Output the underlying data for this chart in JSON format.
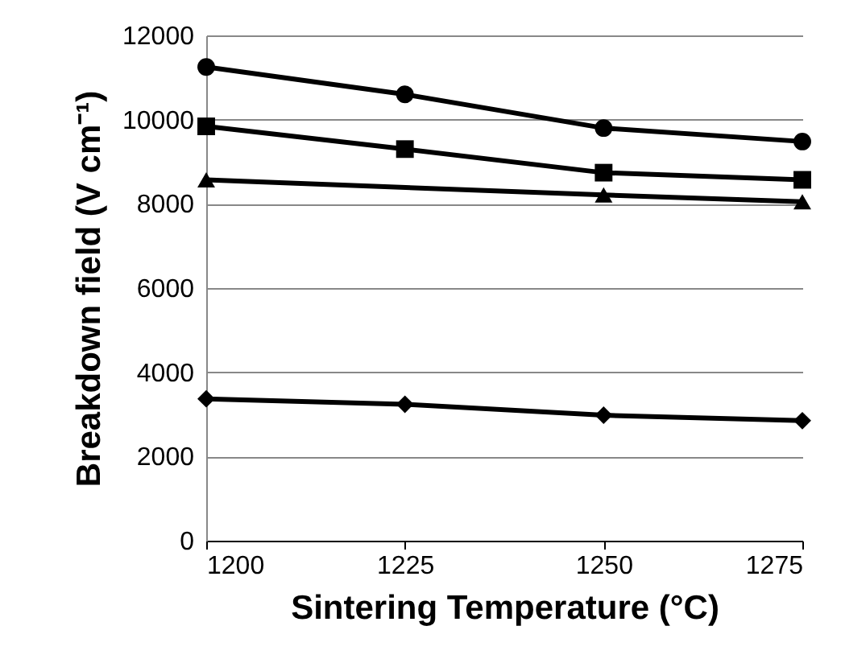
{
  "chart_data": {
    "type": "line",
    "xlabel": "Sintering Temperature (°C)",
    "ylabel": "Breakdown field (V cm⁻¹)",
    "x": [
      1200,
      1225,
      1250,
      1275
    ],
    "series": [
      {
        "color": "#000000",
        "marker": "circle",
        "values": [
          11250,
          10600,
          9800,
          9480
        ]
      },
      {
        "color": "#000000",
        "marker": "square",
        "values": [
          9840,
          9300,
          8740,
          8570
        ]
      },
      {
        "color": "#000000",
        "marker": "triangle",
        "values": [
          8570,
          null,
          8210,
          8050
        ]
      },
      {
        "color": "#000000",
        "marker": "diamond",
        "values": [
          3370,
          3240,
          2980,
          2850
        ]
      }
    ],
    "xlim": [
      1200,
      1275
    ],
    "xticks": [
      1200,
      1225,
      1250,
      1275
    ],
    "ylim": [
      0,
      12000
    ],
    "yticks": [
      0,
      2000,
      4000,
      6000,
      8000,
      10000,
      12000
    ],
    "grid": "y",
    "line_style": "solid"
  }
}
